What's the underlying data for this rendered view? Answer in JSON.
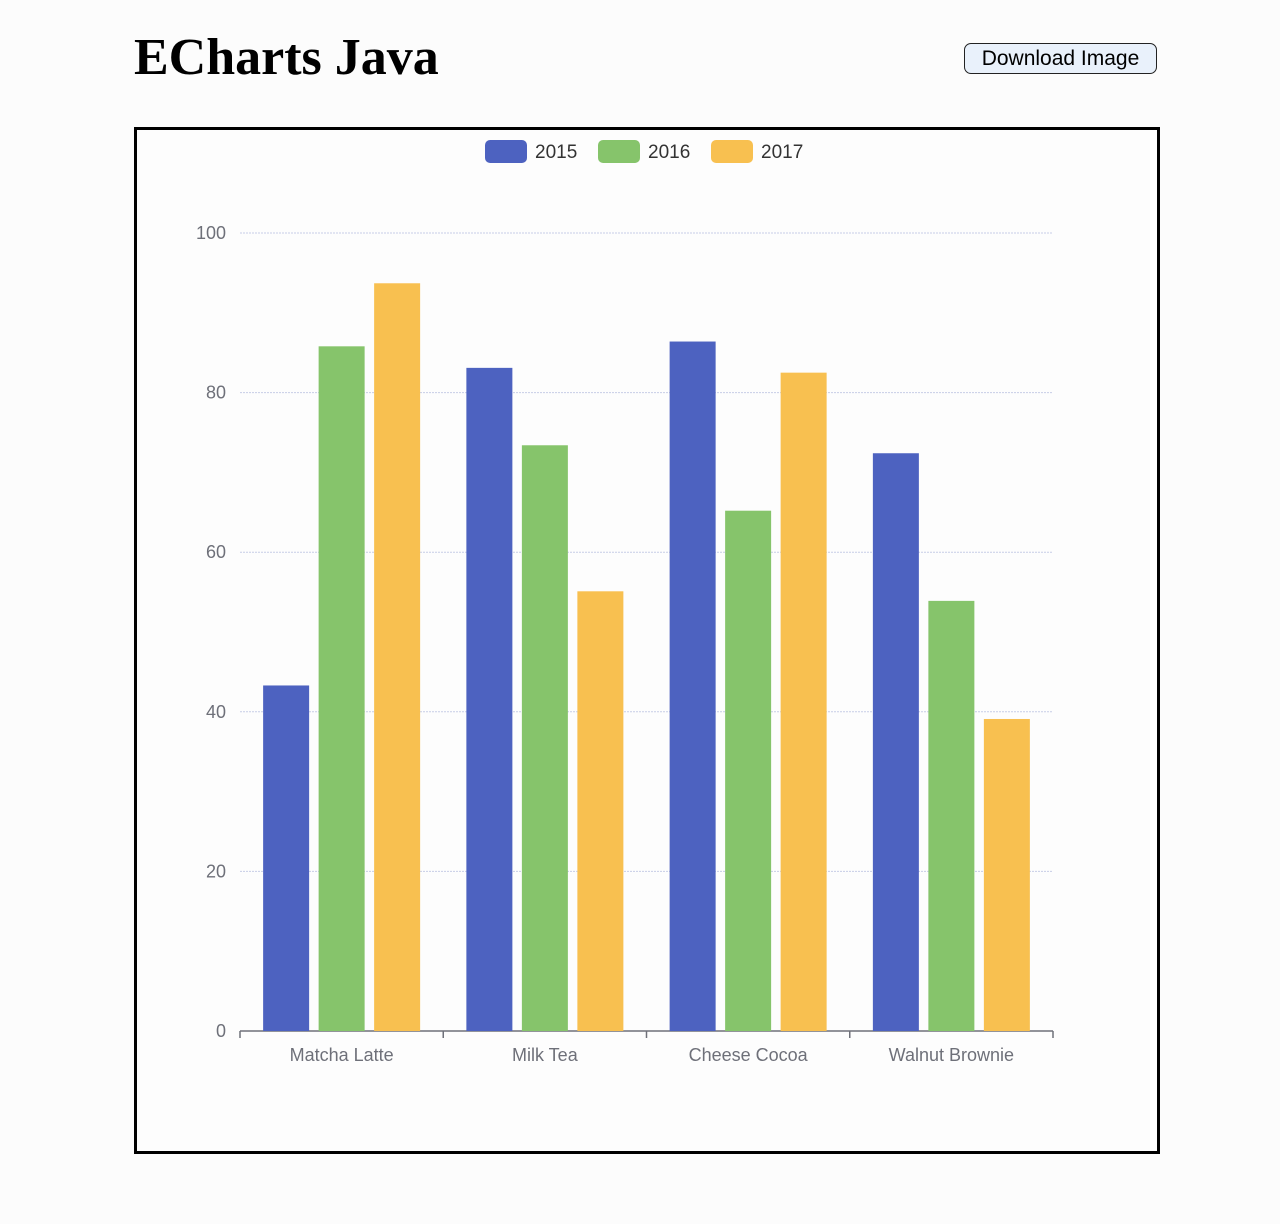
{
  "header": {
    "title": "ECharts Java",
    "download_label": "Download Image"
  },
  "chart_data": {
    "type": "bar",
    "categories": [
      "Matcha Latte",
      "Milk Tea",
      "Cheese Cocoa",
      "Walnut Brownie"
    ],
    "series": [
      {
        "name": "2015",
        "values": [
          43.3,
          83.1,
          86.4,
          72.4
        ],
        "color": "#4d62c0"
      },
      {
        "name": "2016",
        "values": [
          85.8,
          73.4,
          65.2,
          53.9
        ],
        "color": "#86c46b"
      },
      {
        "name": "2017",
        "values": [
          93.7,
          55.1,
          82.5,
          39.1
        ],
        "color": "#f8c050"
      }
    ],
    "ylim": [
      0,
      100
    ],
    "yticks": [
      "0",
      "20",
      "40",
      "60",
      "80",
      "100"
    ],
    "grid": true,
    "legend": "top-center"
  }
}
